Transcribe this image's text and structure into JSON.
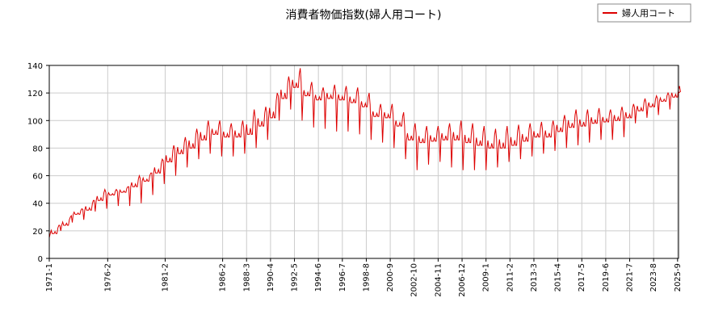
{
  "chart_data": {
    "type": "line",
    "title": "消費者物価指数(婦人用コート)",
    "xlabel": "",
    "ylabel": "",
    "ylim": [
      0,
      140
    ],
    "yticks": [
      0,
      20,
      40,
      60,
      80,
      100,
      120,
      140
    ],
    "xlim": [
      "1971-01",
      "2025-10"
    ],
    "xticks": [
      "1971-1",
      "1976-2",
      "1981-2",
      "1986-2",
      "1988-3",
      "1990-4",
      "1992-5",
      "1994-6",
      "1996-7",
      "1998-8",
      "2000-9",
      "2002-10",
      "2004-11",
      "2006-12",
      "2009-1",
      "2011-2",
      "2013-3",
      "2015-4",
      "2017-5",
      "2019-6",
      "2021-7",
      "2023-8",
      "2025-9"
    ],
    "grid": true,
    "legend": "top-right",
    "colors": {
      "series": "#dd0000",
      "grid": "#cccccc",
      "axis": "#000000"
    },
    "series": [
      {
        "name": "婦人用コート",
        "x": [
          "1971-01",
          "1972-01",
          "1973-01",
          "1974-01",
          "1975-01",
          "1976-01",
          "1977-01",
          "1978-01",
          "1979-01",
          "1980-01",
          "1981-01",
          "1982-01",
          "1983-01",
          "1984-01",
          "1985-01",
          "1986-01",
          "1987-01",
          "1988-01",
          "1989-01",
          "1990-01",
          "1991-01",
          "1992-01",
          "1993-01",
          "1994-01",
          "1995-01",
          "1996-01",
          "1997-01",
          "1998-01",
          "1999-01",
          "2000-01",
          "2001-01",
          "2002-01",
          "2003-01",
          "2004-01",
          "2005-01",
          "2006-01",
          "2007-01",
          "2008-01",
          "2009-01",
          "2010-01",
          "2011-01",
          "2012-01",
          "2013-01",
          "2014-01",
          "2015-01",
          "2016-01",
          "2017-01",
          "2018-01",
          "2019-01",
          "2020-01",
          "2021-01",
          "2022-01",
          "2023-01",
          "2024-01",
          "2025-01"
        ],
        "base": [
          18,
          24,
          32,
          35,
          42,
          46,
          48,
          52,
          56,
          62,
          70,
          76,
          80,
          86,
          90,
          88,
          88,
          90,
          96,
          102,
          116,
          124,
          118,
          115,
          116,
          115,
          113,
          110,
          103,
          102,
          96,
          86,
          84,
          85,
          86,
          86,
          84,
          82,
          80,
          80,
          82,
          85,
          88,
          88,
          92,
          95,
          96,
          98,
          99,
          100,
          102,
          107,
          110,
          114,
          117
        ],
        "peak": [
          24,
          30,
          36,
          42,
          50,
          50,
          52,
          60,
          62,
          72,
          82,
          88,
          94,
          100,
          100,
          98,
          100,
          108,
          110,
          120,
          132,
          138,
          128,
          124,
          126,
          125,
          124,
          120,
          112,
          112,
          106,
          98,
          96,
          96,
          98,
          100,
          98,
          96,
          94,
          96,
          97,
          98,
          99,
          100,
          104,
          108,
          108,
          109,
          108,
          110,
          112,
          116,
          118,
          120,
          125
        ],
        "low": [
          15,
          20,
          26,
          28,
          34,
          36,
          38,
          38,
          40,
          46,
          54,
          60,
          66,
          72,
          76,
          74,
          74,
          76,
          80,
          86,
          100,
          108,
          100,
          95,
          94,
          92,
          92,
          90,
          86,
          84,
          80,
          72,
          64,
          68,
          70,
          66,
          64,
          64,
          64,
          66,
          70,
          72,
          74,
          76,
          78,
          80,
          82,
          84,
          86,
          86,
          88,
          98,
          102,
          104,
          108
        ],
        "last": {
          "x": "2025-10",
          "y": 120
        }
      }
    ]
  }
}
